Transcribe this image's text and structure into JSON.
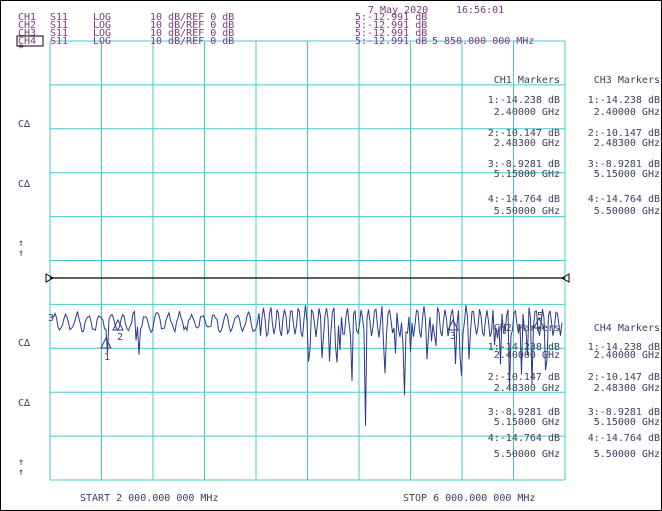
{
  "header": {
    "date": "7 May 2020",
    "time": "16:56:01"
  },
  "channels": [
    {
      "ch": "CH1",
      "param": "S11",
      "format": "LOG",
      "scale": "10 dB/REF 0 dB",
      "marker": "5:-12.991 dB"
    },
    {
      "ch": "CH2",
      "param": "S11",
      "format": "LOG",
      "scale": "10 dB/REF 0 dB",
      "marker": "5:-12.991 dB"
    },
    {
      "ch": "CH3",
      "param": "S11",
      "format": "LOG",
      "scale": "10 dB/REF 0 dB",
      "marker": "5:-12.991 dB"
    },
    {
      "ch": "CH4",
      "param": "S11",
      "format": "LOG",
      "scale": "10 dB/REF 0 dB",
      "marker": "5:-12.991 dB",
      "freq": "5 850.000 000 MHz"
    }
  ],
  "left_labels": {
    "star": "*",
    "c1": "C∆",
    "c2": "C∆",
    "arrow1": "↑",
    "c3": "C∆",
    "c4": "C∆",
    "arrow2": "↑"
  },
  "marker_panels": [
    {
      "title": "CH1 Markers",
      "entries": [
        {
          "value": "1:-14.238 dB",
          "freq": "2.40000 GHz"
        },
        {
          "value": "2:-10.147 dB",
          "freq": "2.48300 GHz"
        },
        {
          "value": "3:-8.9281 dB",
          "freq": "5.15000 GHz"
        },
        {
          "value": "4:-14.764 dB",
          "freq": "5.50000 GHz"
        }
      ]
    },
    {
      "title": "CH3 Markers",
      "entries": [
        {
          "value": "1:-14.238 dB",
          "freq": "2.40000 GHz"
        },
        {
          "value": "2:-10.147 dB",
          "freq": "2.48300 GHz"
        },
        {
          "value": "3:-8.9281 dB",
          "freq": "5.15000 GHz"
        },
        {
          "value": "4:-14.764 dB",
          "freq": "5.50000 GHz"
        }
      ]
    },
    {
      "title": "CH2 Markers",
      "entries": [
        {
          "value": "1:-14.238 dB",
          "freq": "2.40000 GHz"
        },
        {
          "value": "2:-10.147 dB",
          "freq": "2.48300 GHz"
        },
        {
          "value": "3:-8.9281 dB",
          "freq": "5.15000 GHz"
        },
        {
          "value": "4:-14.764 dB",
          "freq": "5.50000 GHz"
        }
      ]
    },
    {
      "title": "CH4 Markers",
      "entries": [
        {
          "value": "1:-14.238 dB",
          "freq": "2.40000 GHz"
        },
        {
          "value": "2:-10.147 dB",
          "freq": "2.48300 GHz"
        },
        {
          "value": "3:-8.9281 dB",
          "freq": "5.15000 GHz"
        },
        {
          "value": "4:-14.764 dB",
          "freq": "5.50000 GHz"
        }
      ]
    }
  ],
  "footer": {
    "start": "START 2 000.000 000 MHz",
    "stop": "STOP 6 000.000 000 MHz"
  }
}
